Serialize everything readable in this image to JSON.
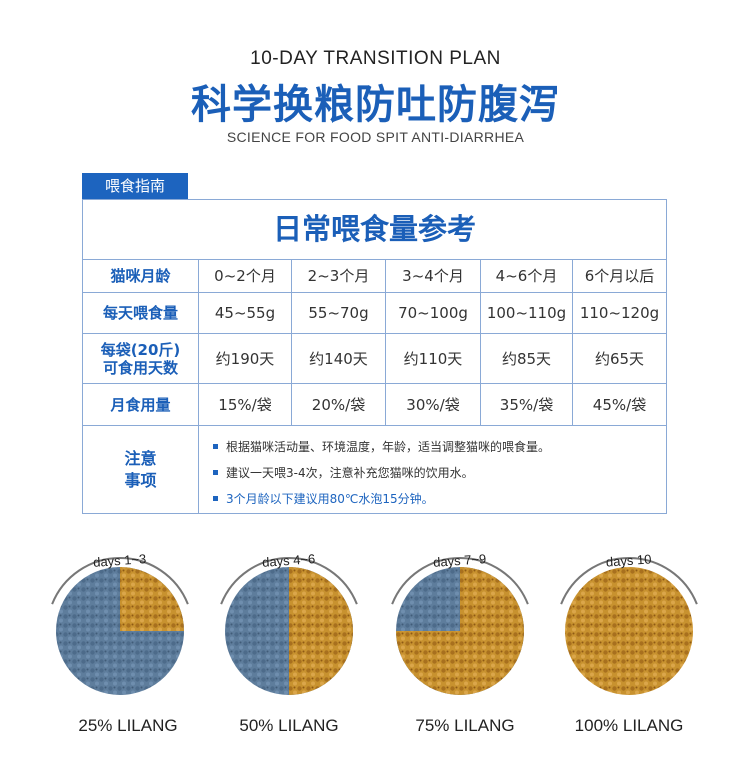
{
  "header": {
    "title_en": "10-DAY TRANSITION PLAN",
    "title_cn": "科学换粮防吐防腹泻",
    "subtitle": "SCIENCE FOR FOOD SPIT ANTI-DIARRHEA"
  },
  "guide": {
    "tag": "喂食指南",
    "table_title": "日常喂食量参考",
    "rows": [
      {
        "label": "猫咪月龄",
        "values": [
          "0~2个月",
          "2~3个月",
          "3~4个月",
          "4~6个月",
          "6个月以后"
        ]
      },
      {
        "label": "每天喂食量",
        "values": [
          "45~55g",
          "55~70g",
          "70~100g",
          "100~110g",
          "110~120g"
        ]
      },
      {
        "label": "每袋(20斤)\n可食用天数",
        "values": [
          "约190天",
          "约140天",
          "约110天",
          "约85天",
          "约65天"
        ]
      },
      {
        "label": "月食用量",
        "values": [
          "15%/袋",
          "20%/袋",
          "30%/袋",
          "35%/袋",
          "45%/袋"
        ]
      }
    ],
    "notes_label": "注意\n事项",
    "notes": [
      "根据猫咪活动量、环境温度，年龄，适当调整猫咪的喂食量。",
      "建议一天喂3-4次，注意补充您猫咪的饮用水。",
      "3个月龄以下建议用80℃水泡15分钟。"
    ]
  },
  "transition": [
    {
      "days": "days 1~3",
      "label": "25% LILANG",
      "lilang_fraction": 0.25
    },
    {
      "days": "days 4~6",
      "label": "50% LILANG",
      "lilang_fraction": 0.5
    },
    {
      "days": "days 7~9",
      "label": "75% LILANG",
      "lilang_fraction": 0.75
    },
    {
      "days": "days 10",
      "label": "100% LILANG",
      "lilang_fraction": 1.0
    }
  ],
  "colors": {
    "brand_blue": "#1b5fb8",
    "old_food": "#5e7d9c",
    "lilang_food": "#c8922f"
  }
}
